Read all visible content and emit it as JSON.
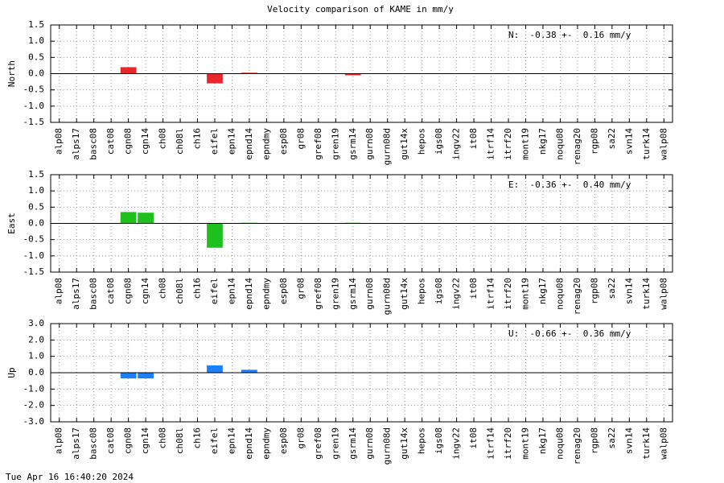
{
  "chart_data": [
    {
      "type": "bar",
      "title": "Velocity comparison of KAME in mm/y",
      "ylabel": "North",
      "annotation": "N:  -0.38 +-  0.16 mm/y",
      "categories": [
        "alp08",
        "alps17",
        "basc08",
        "cat08",
        "cgn08",
        "cgn14",
        "ch08",
        "ch08l",
        "ch16",
        "eifel",
        "epn14",
        "epnd14",
        "epndmy",
        "esp08",
        "gr08",
        "gref08",
        "gren19",
        "gsrm14",
        "gurn08",
        "gurn08d",
        "gut14x",
        "hepos",
        "igs08",
        "ingv22",
        "it08",
        "itrf14",
        "itrf20",
        "mont19",
        "nkg17",
        "noqu08",
        "renag20",
        "rgp08",
        "sa22",
        "svn14",
        "turk14",
        "walp08"
      ],
      "values": [
        0,
        0,
        0,
        0,
        0.2,
        0,
        0,
        0,
        0,
        -0.3,
        0,
        0.03,
        0,
        0,
        0,
        0,
        0,
        -0.05,
        0,
        0,
        0,
        0,
        0,
        0,
        0,
        0,
        0,
        0,
        0,
        0,
        0,
        0,
        0,
        0,
        0,
        0
      ],
      "color": "#e8262b",
      "ylim": [
        -1.5,
        1.5
      ],
      "yticks": [
        {
          "value": 1.5,
          "label": "1.5"
        },
        {
          "value": 1.0,
          "label": "1.0"
        },
        0.5,
        {
          "value": 0,
          "label": "0.0"
        },
        -0.5,
        {
          "value": -1.0,
          "label": "-1.0"
        },
        -1.5
      ],
      "grid": true
    },
    {
      "type": "bar",
      "ylabel": "East",
      "annotation": "E:  -0.36 +-  0.40 mm/y",
      "categories": [
        "alp08",
        "alps17",
        "basc08",
        "cat08",
        "cgn08",
        "cgn14",
        "ch08",
        "ch08l",
        "ch16",
        "eifel",
        "epn14",
        "epnd14",
        "epndmy",
        "esp08",
        "gr08",
        "gref08",
        "gren19",
        "gsrm14",
        "gurn08",
        "gurn08d",
        "gut14x",
        "hepos",
        "igs08",
        "ingv22",
        "it08",
        "itrf14",
        "itrf20",
        "mont19",
        "nkg17",
        "noqu08",
        "renag20",
        "rgp08",
        "sa22",
        "svn14",
        "turk14",
        "walp08"
      ],
      "values": [
        0,
        0,
        0,
        0,
        0.35,
        0.33,
        0,
        0,
        0,
        -0.75,
        0,
        0.02,
        0,
        0,
        0,
        0,
        0,
        0.02,
        0,
        0,
        0,
        0,
        0,
        0,
        0,
        0,
        0,
        0,
        0,
        0,
        0,
        0,
        0,
        0,
        0,
        0
      ],
      "color": "#1ec01e",
      "ylim": [
        -1.5,
        1.5
      ],
      "yticks": [
        {
          "value": 1.5,
          "label": "1.5"
        },
        {
          "value": 1.0,
          "label": "1.0"
        },
        0.5,
        {
          "value": 0,
          "label": "0.0"
        },
        -0.5,
        {
          "value": -1.0,
          "label": "-1.0"
        },
        -1.5
      ],
      "grid": true
    },
    {
      "type": "bar",
      "ylabel": "Up",
      "annotation": "U:  -0.66 +-  0.36 mm/y",
      "categories": [
        "alp08",
        "alps17",
        "basc08",
        "cat08",
        "cgn08",
        "cgn14",
        "ch08",
        "ch08l",
        "ch16",
        "eifel",
        "epn14",
        "epnd14",
        "epndmy",
        "esp08",
        "gr08",
        "gref08",
        "gren19",
        "gsrm14",
        "gurn08",
        "gurn08d",
        "gut14x",
        "hepos",
        "igs08",
        "ingv22",
        "it08",
        "itrf14",
        "itrf20",
        "mont19",
        "nkg17",
        "noqu08",
        "renag20",
        "rgp08",
        "sa22",
        "svn14",
        "turk14",
        "walp08"
      ],
      "values": [
        0,
        0,
        0,
        0,
        -0.35,
        -0.35,
        0,
        0,
        0,
        0.45,
        0,
        0.18,
        0,
        0,
        0,
        0,
        0,
        0,
        0,
        0,
        0,
        0,
        0,
        0,
        0,
        0,
        0,
        0,
        0,
        0,
        0,
        0,
        0,
        0,
        0,
        0
      ],
      "color": "#1a80ff",
      "ylim": [
        -3,
        3
      ],
      "yticks": [
        {
          "value": 3,
          "label": "3.0"
        },
        {
          "value": 2,
          "label": "2.0"
        },
        {
          "value": 1,
          "label": "1.0"
        },
        {
          "value": 0,
          "label": "0.0"
        },
        {
          "value": -1,
          "label": "-1.0"
        },
        {
          "value": -2,
          "label": "-2.0"
        },
        {
          "value": -3,
          "label": "-3.0"
        }
      ],
      "grid": true
    }
  ],
  "footer": "Tue Apr 16 16:40:20 2024"
}
